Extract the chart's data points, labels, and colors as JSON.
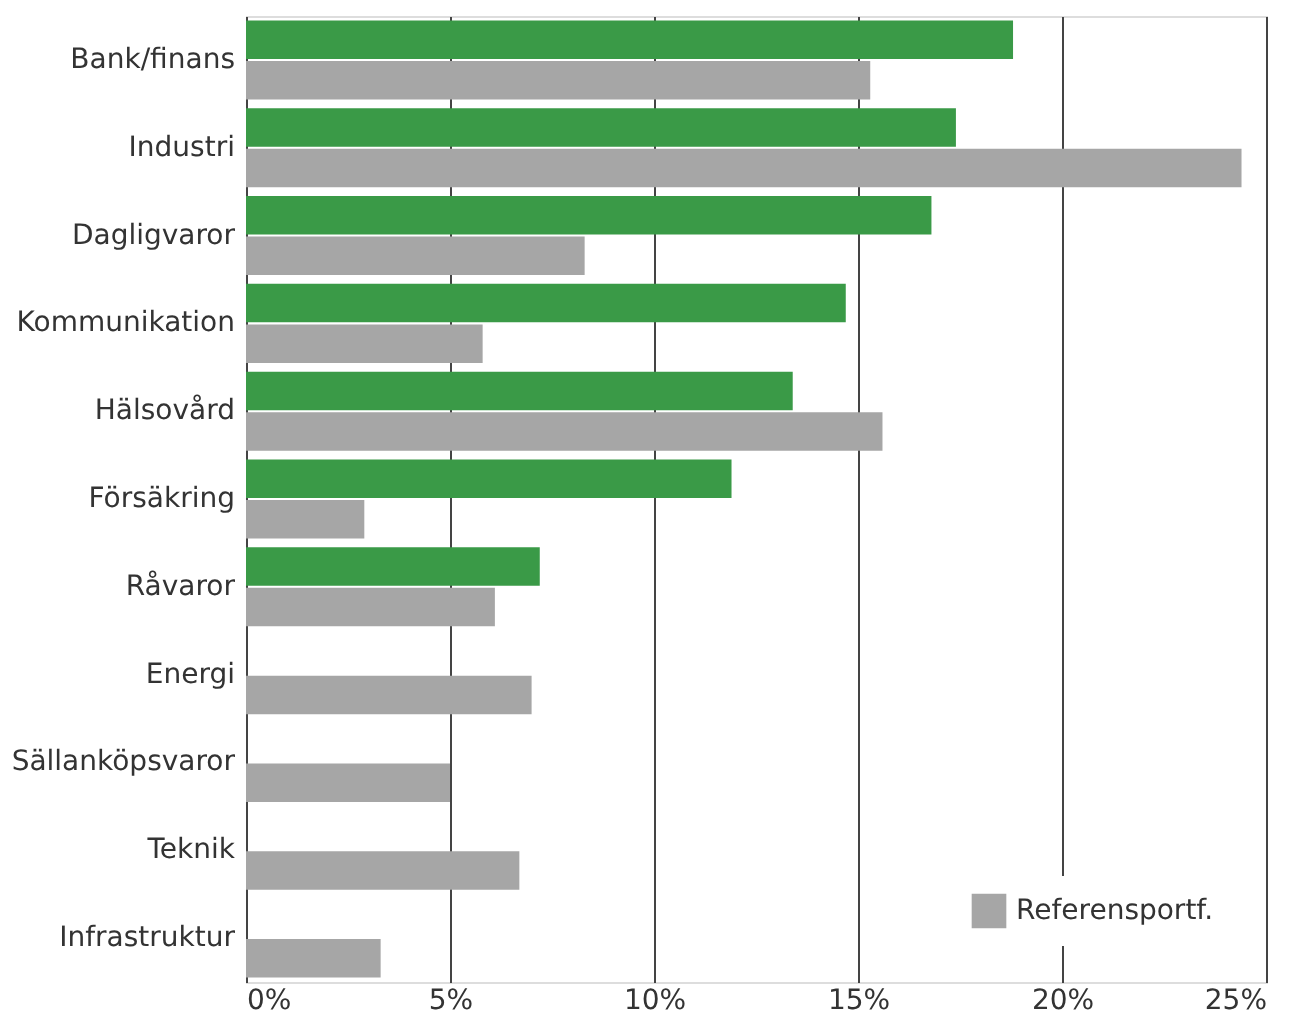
{
  "chart_data": {
    "type": "bar",
    "orientation": "horizontal",
    "categories": [
      "Bank/finans",
      "Industri",
      "Dagligvaror",
      "Kommunikation",
      "Hälsovård",
      "Försäkring",
      "Råvaror",
      "Energi",
      "Sällanköpsvaror",
      "Teknik",
      "Infrastruktur"
    ],
    "series": [
      {
        "color": "#3a9a47",
        "values": [
          18.8,
          17.4,
          16.8,
          14.7,
          13.4,
          11.9,
          7.2,
          null,
          null,
          null,
          null
        ]
      },
      {
        "name": "Referensportf.",
        "color": "#a6a6a6",
        "values": [
          15.3,
          24.4,
          8.3,
          5.8,
          15.6,
          2.9,
          6.1,
          7.0,
          5.0,
          6.7,
          3.3
        ]
      }
    ],
    "xlim": [
      0,
      25
    ],
    "xticks": [
      {
        "value": 0,
        "label": "0%"
      },
      {
        "value": 5,
        "label": "5%"
      },
      {
        "value": 10,
        "label": "10%"
      },
      {
        "value": 15,
        "label": "15%"
      },
      {
        "value": 20,
        "label": "20%"
      },
      {
        "value": 25,
        "label": "25%"
      }
    ],
    "grid": "x",
    "legend": "bottom right"
  }
}
